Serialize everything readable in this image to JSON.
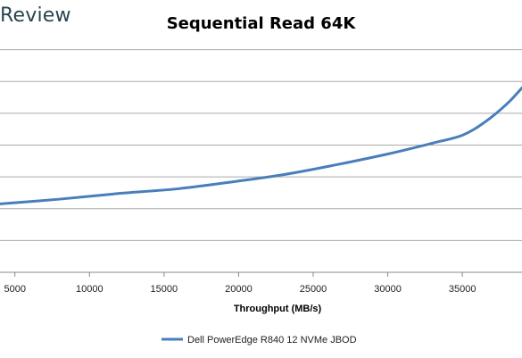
{
  "brand": "Review",
  "chart_data": {
    "type": "line",
    "title": "Sequential Read 64K",
    "xlabel": "Throughput (MB/s)",
    "ylabel": "",
    "xlim": [
      4000,
      39000
    ],
    "ylim": [
      0,
      8
    ],
    "x_ticks": [
      5000,
      10000,
      15000,
      20000,
      25000,
      30000,
      35000
    ],
    "y_gridlines": [
      1,
      2,
      3,
      4,
      5,
      6,
      7
    ],
    "grid": true,
    "legend_position": "bottom",
    "colors": {
      "series": "#4a7ebb",
      "grid": "#aaaaaa",
      "axis": "#888888"
    },
    "series": [
      {
        "name": "Dell PowerEdge R840 12 NVMe JBOD",
        "x": [
          4000,
          8000,
          12000,
          16000,
          20000,
          23000,
          26000,
          30000,
          33000,
          35000,
          36500,
          38000,
          39000
        ],
        "y": [
          2.15,
          2.3,
          2.48,
          2.63,
          2.87,
          3.07,
          3.33,
          3.72,
          4.06,
          4.31,
          4.72,
          5.3,
          5.8
        ]
      }
    ]
  }
}
